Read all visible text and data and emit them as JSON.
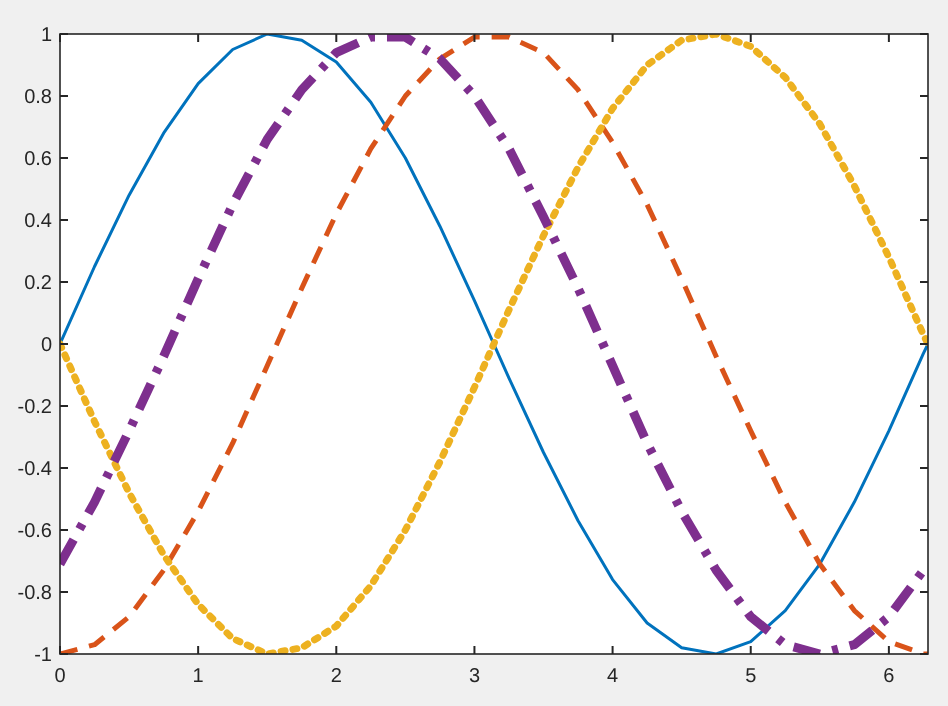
{
  "chart_data": {
    "type": "line",
    "x": [
      0,
      0.25,
      0.5,
      0.75,
      1,
      1.25,
      1.5,
      1.75,
      2,
      2.25,
      2.5,
      2.75,
      3,
      3.25,
      3.5,
      3.75,
      4,
      4.25,
      4.5,
      4.75,
      5,
      5.25,
      5.5,
      5.75,
      6,
      6.25,
      6.2832
    ],
    "series": [
      {
        "color": "#0072bd",
        "line_style": "solid",
        "values": [
          0,
          0.25,
          0.48,
          0.68,
          0.84,
          0.95,
          1,
          0.98,
          0.91,
          0.78,
          0.6,
          0.38,
          0.14,
          -0.11,
          -0.35,
          -0.57,
          -0.76,
          -0.9,
          -0.98,
          -1,
          -0.96,
          -0.86,
          -0.71,
          -0.51,
          -0.28,
          -0.03,
          0
        ]
      },
      {
        "color": "#d95319",
        "line_style": "dashed",
        "values": [
          -1,
          -0.97,
          -0.88,
          -0.73,
          -0.54,
          -0.32,
          -0.07,
          0.18,
          0.42,
          0.63,
          0.8,
          0.92,
          0.99,
          0.99,
          0.94,
          0.82,
          0.65,
          0.45,
          0.21,
          -0.04,
          -0.28,
          -0.51,
          -0.71,
          -0.86,
          -0.96,
          -1,
          -1
        ]
      },
      {
        "color": "#edb120",
        "line_style": "dotted",
        "values": [
          0,
          -0.25,
          -0.48,
          -0.68,
          -0.84,
          -0.95,
          -1,
          -0.98,
          -0.91,
          -0.78,
          -0.6,
          -0.38,
          -0.14,
          0.11,
          0.35,
          0.57,
          0.76,
          0.9,
          0.98,
          1,
          0.96,
          0.86,
          0.71,
          0.51,
          0.28,
          0.03,
          0
        ]
      },
      {
        "color": "#7e2f8e",
        "line_style": "dashed",
        "values": [
          -0.71,
          -0.51,
          -0.28,
          -0.04,
          0.21,
          0.45,
          0.66,
          0.82,
          0.94,
          0.99,
          0.99,
          0.92,
          0.8,
          0.63,
          0.41,
          0.18,
          -0.07,
          -0.32,
          -0.54,
          -0.73,
          -0.88,
          -0.97,
          -1,
          -0.97,
          -0.88,
          -0.73,
          -0.71
        ]
      }
    ],
    "xlim": [
      0,
      6.2832
    ],
    "xticks": [
      0,
      1,
      2,
      3,
      4,
      5,
      6
    ],
    "ylim": [
      -1,
      1
    ],
    "yticks": [
      -1,
      -0.8,
      -0.6,
      -0.4,
      -0.2,
      0,
      0.2,
      0.4,
      0.6,
      0.8,
      1
    ],
    "grid": false
  }
}
